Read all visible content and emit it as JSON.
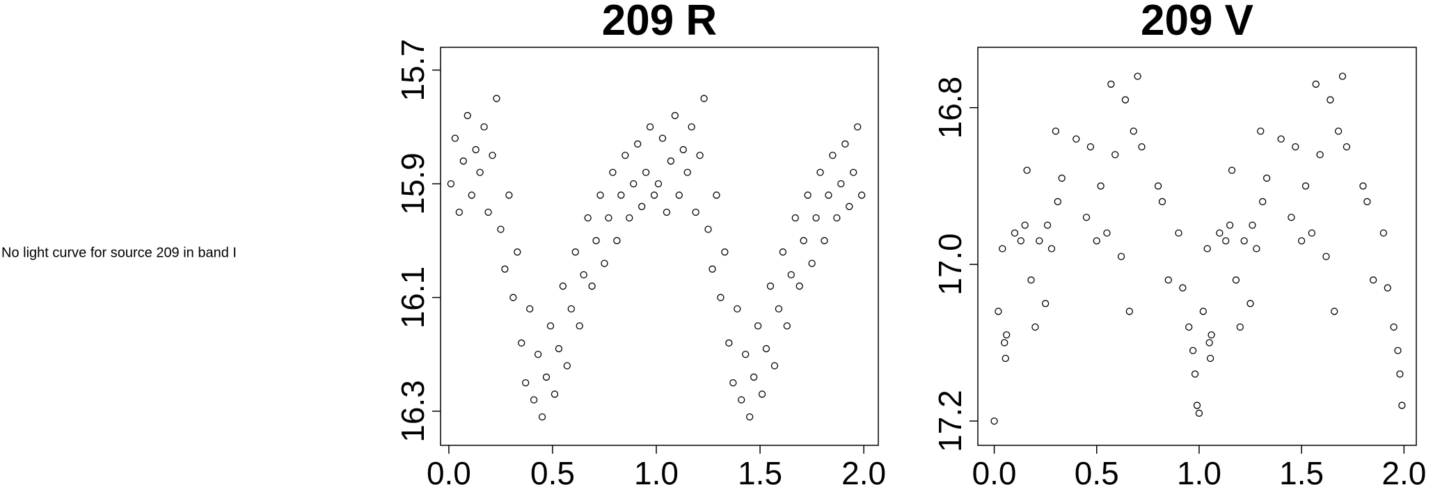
{
  "message": "No light curve for source 209 in band I",
  "chart_data": [
    {
      "type": "scatter",
      "title": "209 R",
      "color": "#000000",
      "xlim": [
        -0.04,
        2.07
      ],
      "ylim": [
        16.36,
        15.66
      ],
      "xticks": [
        {
          "value": 0,
          "label": "0.0"
        },
        0.5,
        {
          "value": 1,
          "label": "1.0"
        },
        1.5,
        {
          "value": 2,
          "label": "2.0"
        }
      ],
      "yticks": [
        15.7,
        15.9,
        16.1,
        16.3
      ],
      "x": [
        0.01,
        0.03,
        0.05,
        0.07,
        0.09,
        0.11,
        0.13,
        0.15,
        0.17,
        0.19,
        0.21,
        0.23,
        0.25,
        0.27,
        0.29,
        0.31,
        0.33,
        0.35,
        0.37,
        0.39,
        0.41,
        0.43,
        0.45,
        0.47,
        0.49,
        0.51,
        0.53,
        0.55,
        0.57,
        0.59,
        0.61,
        0.63,
        0.65,
        0.67,
        0.69,
        0.71,
        0.73,
        0.75,
        0.77,
        0.79,
        0.81,
        0.83,
        0.85,
        0.87,
        0.89,
        0.91,
        0.93,
        0.95,
        0.97,
        0.99,
        1.01,
        1.03,
        1.05,
        1.07,
        1.09,
        1.11,
        1.13,
        1.15,
        1.17,
        1.19,
        1.21,
        1.23,
        1.25,
        1.27,
        1.29,
        1.31,
        1.33,
        1.35,
        1.37,
        1.39,
        1.41,
        1.43,
        1.45,
        1.47,
        1.49,
        1.51,
        1.53,
        1.55,
        1.57,
        1.59,
        1.61,
        1.63,
        1.65,
        1.67,
        1.69,
        1.71,
        1.73,
        1.75,
        1.77,
        1.79,
        1.81,
        1.83,
        1.85,
        1.87,
        1.89,
        1.91,
        1.93,
        1.95,
        1.97,
        1.99
      ],
      "values": [
        15.9,
        15.82,
        15.95,
        15.86,
        15.78,
        15.92,
        15.84,
        15.88,
        15.8,
        15.95,
        15.85,
        15.75,
        15.98,
        16.05,
        15.92,
        16.1,
        16.02,
        16.18,
        16.25,
        16.12,
        16.28,
        16.2,
        16.31,
        16.24,
        16.15,
        16.27,
        16.19,
        16.08,
        16.22,
        16.12,
        16.02,
        16.15,
        16.06,
        15.96,
        16.08,
        16.0,
        15.92,
        16.04,
        15.96,
        15.88,
        16.0,
        15.92,
        15.85,
        15.96,
        15.9,
        15.83,
        15.94,
        15.88,
        15.8,
        15.92,
        15.9,
        15.82,
        15.95,
        15.86,
        15.78,
        15.92,
        15.84,
        15.88,
        15.8,
        15.95,
        15.85,
        15.75,
        15.98,
        16.05,
        15.92,
        16.1,
        16.02,
        16.18,
        16.25,
        16.12,
        16.28,
        16.2,
        16.31,
        16.24,
        16.15,
        16.27,
        16.19,
        16.08,
        16.22,
        16.12,
        16.02,
        16.15,
        16.06,
        15.96,
        16.08,
        16.0,
        15.92,
        16.04,
        15.96,
        15.88,
        16.0,
        15.92,
        15.85,
        15.96,
        15.9,
        15.83,
        15.94,
        15.88,
        15.8,
        15.92
      ]
    },
    {
      "type": "scatter",
      "title": "209 V",
      "color": "#000000",
      "xlim": [
        -0.08,
        2.06
      ],
      "ylim": [
        17.231,
        16.723
      ],
      "xticks": [
        {
          "value": 0,
          "label": "0.0"
        },
        0.5,
        {
          "value": 1,
          "label": "1.0"
        },
        1.5,
        {
          "value": 2,
          "label": "2.0"
        }
      ],
      "yticks": [
        16.8,
        {
          "value": 17,
          "label": "17.0"
        },
        17.2
      ],
      "x": [
        0.0,
        0.02,
        0.04,
        0.05,
        0.055,
        0.06,
        0.1,
        0.13,
        0.15,
        0.16,
        0.18,
        0.2,
        0.22,
        0.25,
        0.26,
        0.28,
        0.3,
        0.31,
        0.33,
        0.4,
        0.45,
        0.47,
        0.5,
        0.52,
        0.55,
        0.57,
        0.59,
        0.62,
        0.64,
        0.66,
        0.68,
        0.7,
        0.72,
        0.8,
        0.82,
        0.85,
        0.9,
        0.92,
        0.95,
        0.97,
        0.98,
        0.99,
        1.0,
        1.02,
        1.04,
        1.05,
        1.055,
        1.06,
        1.1,
        1.13,
        1.15,
        1.16,
        1.18,
        1.2,
        1.22,
        1.25,
        1.26,
        1.28,
        1.3,
        1.31,
        1.33,
        1.4,
        1.45,
        1.47,
        1.5,
        1.52,
        1.55,
        1.57,
        1.59,
        1.62,
        1.64,
        1.66,
        1.68,
        1.7,
        1.72,
        1.8,
        1.82,
        1.85,
        1.9,
        1.92,
        1.95,
        1.97,
        1.98,
        1.99
      ],
      "values": [
        17.2,
        17.06,
        16.98,
        17.1,
        17.12,
        17.09,
        16.96,
        16.97,
        16.95,
        16.88,
        17.02,
        17.08,
        16.97,
        17.05,
        16.95,
        16.98,
        16.83,
        16.92,
        16.89,
        16.84,
        16.94,
        16.85,
        16.97,
        16.9,
        16.96,
        16.77,
        16.86,
        16.99,
        16.79,
        17.06,
        16.83,
        16.76,
        16.85,
        16.9,
        16.92,
        17.02,
        16.96,
        17.03,
        17.08,
        17.11,
        17.14,
        17.18,
        17.19,
        17.06,
        16.98,
        17.1,
        17.12,
        17.09,
        16.96,
        16.97,
        16.95,
        16.88,
        17.02,
        17.08,
        16.97,
        17.05,
        16.95,
        16.98,
        16.83,
        16.92,
        16.89,
        16.84,
        16.94,
        16.85,
        16.97,
        16.9,
        16.96,
        16.77,
        16.86,
        16.99,
        16.79,
        17.06,
        16.83,
        16.76,
        16.85,
        16.9,
        16.92,
        17.02,
        16.96,
        17.03,
        17.08,
        17.11,
        17.14,
        17.18
      ]
    }
  ]
}
